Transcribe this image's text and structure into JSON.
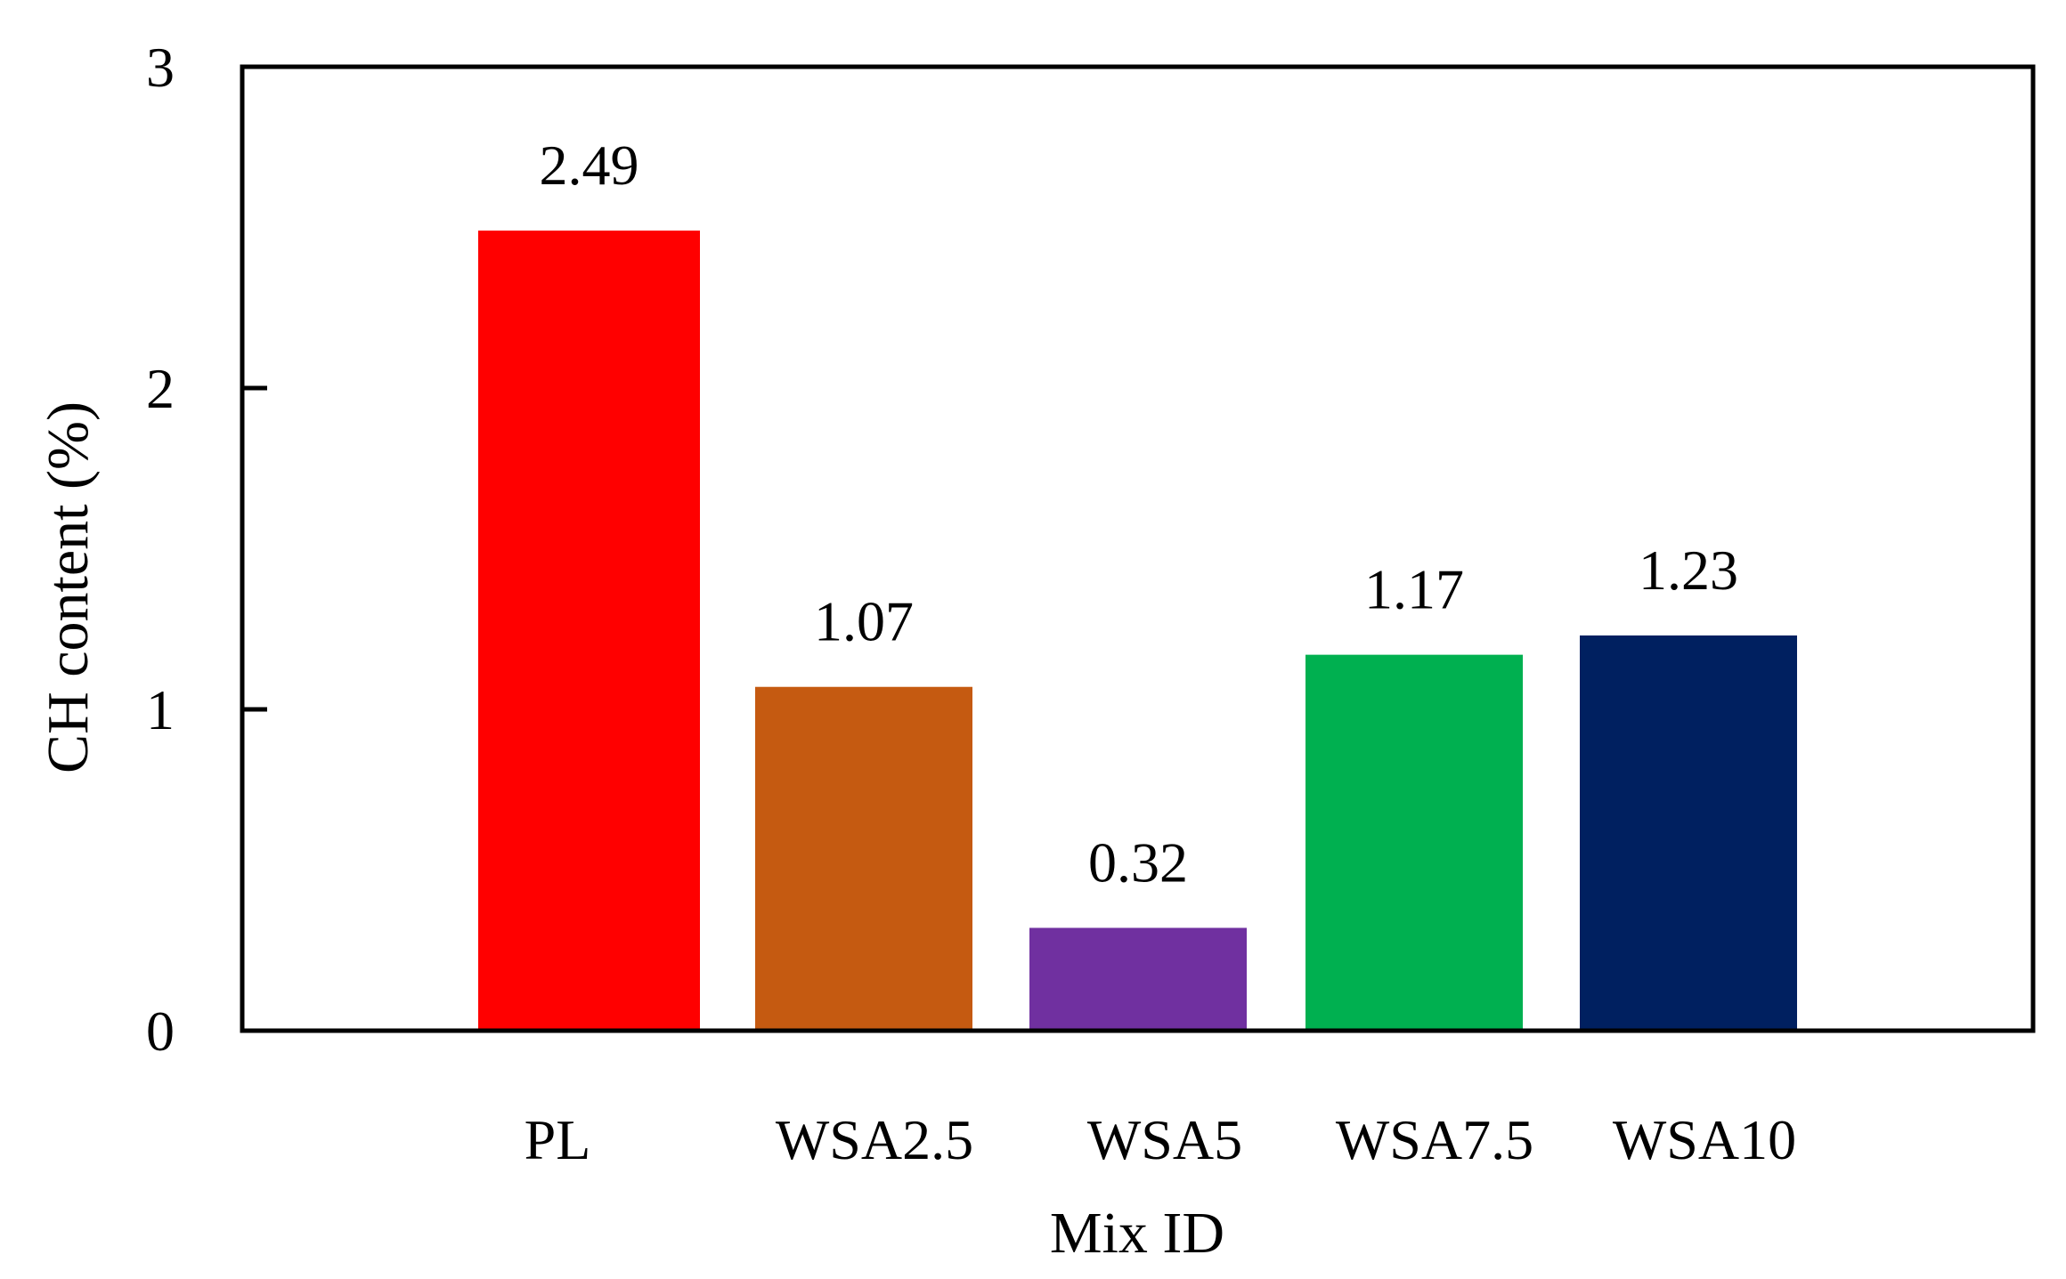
{
  "chart_data": {
    "type": "bar",
    "title": "",
    "xlabel": "Mix ID",
    "ylabel": "CH content (%)",
    "ylim": [
      0,
      3
    ],
    "yticks": [
      0,
      1,
      2,
      3
    ],
    "grid": false,
    "legend": "none",
    "categories": [
      "PL",
      "WSA2.5",
      "WSA5",
      "WSA7.5",
      "WSA10"
    ],
    "values": [
      2.49,
      1.07,
      0.32,
      1.17,
      1.23
    ],
    "value_labels": [
      "2.49",
      "1.07",
      "0.32",
      "1.17",
      "1.23"
    ],
    "colors": [
      "#ff0000",
      "#c55a11",
      "#7030a0",
      "#00b050",
      "#002060"
    ]
  }
}
